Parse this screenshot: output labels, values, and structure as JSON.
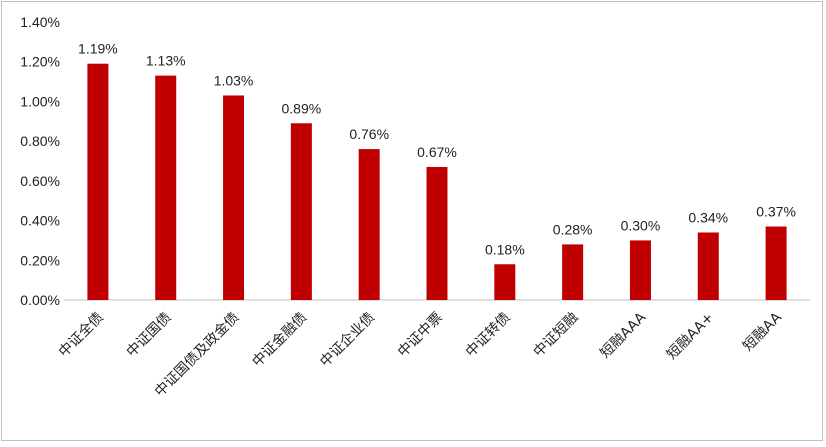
{
  "chart_data": {
    "type": "bar",
    "title": "",
    "xlabel": "",
    "ylabel": "",
    "categories": [
      "中证全债",
      "中证国债",
      "中证国债及政金债",
      "中证金融债",
      "中证企业债",
      "中证中票",
      "中证转债",
      "中证短融",
      "短融AAA",
      "短融AA+",
      "短融AA"
    ],
    "values": [
      1.19,
      1.13,
      1.03,
      0.89,
      0.76,
      0.67,
      0.18,
      0.28,
      0.3,
      0.34,
      0.37
    ],
    "data_labels": [
      "1.19%",
      "1.13%",
      "1.03%",
      "0.89%",
      "0.76%",
      "0.67%",
      "0.18%",
      "0.28%",
      "0.30%",
      "0.34%",
      "0.37%"
    ],
    "y_ticks": [
      "0.00%",
      "0.20%",
      "0.40%",
      "0.60%",
      "0.80%",
      "1.00%",
      "1.20%",
      "1.40%"
    ],
    "ylim": [
      0,
      1.4
    ],
    "unit": "%",
    "grid": false,
    "legend": "none",
    "bar_color": "#C00000"
  }
}
